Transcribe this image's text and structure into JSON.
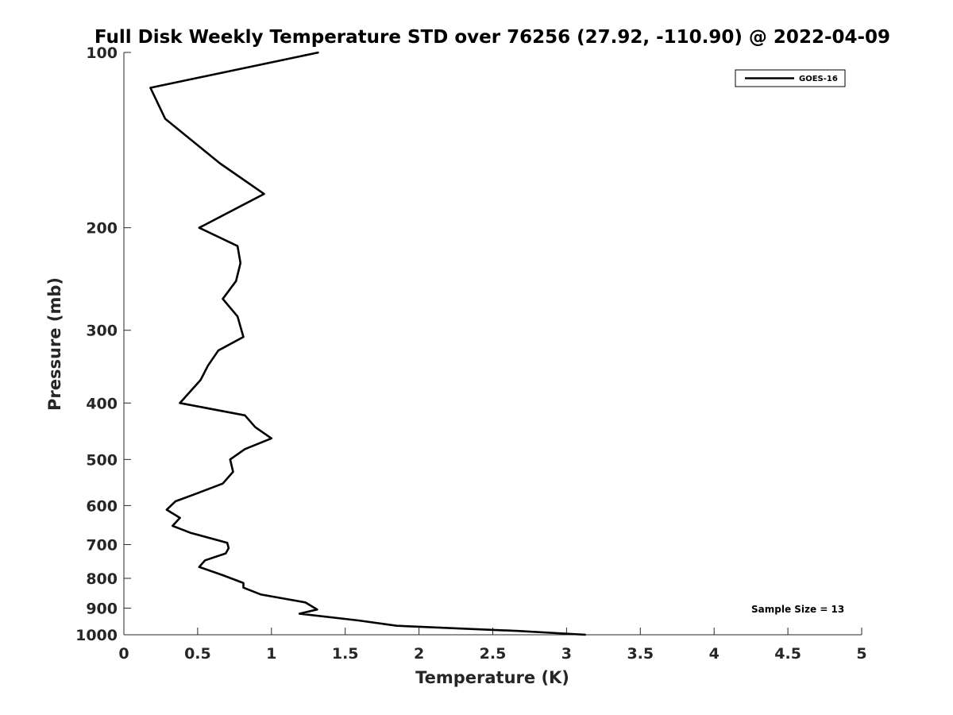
{
  "chart_data": {
    "type": "line",
    "title": "Full Disk Weekly Temperature STD over 76256 (27.92, -110.90) @ 2022-04-09",
    "xlabel": "Temperature (K)",
    "ylabel": "Pressure (mb)",
    "xlim": [
      0,
      5
    ],
    "ylim": [
      100,
      1000
    ],
    "y_scale": "log",
    "y_reversed": true,
    "x_ticks": [
      "0",
      "0.5",
      "1",
      "1.5",
      "2",
      "2.5",
      "3",
      "3.5",
      "4",
      "4.5",
      "5"
    ],
    "y_ticks": [
      "100",
      "200",
      "300",
      "400",
      "500",
      "600",
      "700",
      "800",
      "900",
      "1000"
    ],
    "grid": false,
    "legend_position": "top-right",
    "annotation": "Sample Size = 13",
    "series": [
      {
        "name": "GOES-16",
        "color": "#000000",
        "x": [
          1.32,
          0.18,
          0.28,
          0.65,
          0.95,
          0.51,
          0.77,
          0.79,
          0.76,
          0.67,
          0.77,
          0.81,
          0.64,
          0.57,
          0.52,
          0.38,
          0.82,
          0.89,
          1.0,
          0.82,
          0.72,
          0.74,
          0.67,
          0.47,
          0.35,
          0.29,
          0.38,
          0.33,
          0.45,
          0.7,
          0.71,
          0.69,
          0.55,
          0.51,
          0.67,
          0.81,
          0.81,
          0.93,
          1.23,
          1.31,
          1.19,
          1.59,
          1.85,
          2.67,
          3.13
        ],
        "y": [
          100,
          115,
          130,
          155,
          175,
          200,
          215,
          230,
          247,
          265,
          284,
          308,
          325,
          345,
          365,
          400,
          420,
          440,
          460,
          480,
          500,
          525,
          550,
          575,
          590,
          610,
          630,
          650,
          668,
          695,
          710,
          725,
          745,
          765,
          790,
          815,
          830,
          853,
          880,
          905,
          920,
          945,
          965,
          985,
          1000
        ]
      }
    ]
  }
}
